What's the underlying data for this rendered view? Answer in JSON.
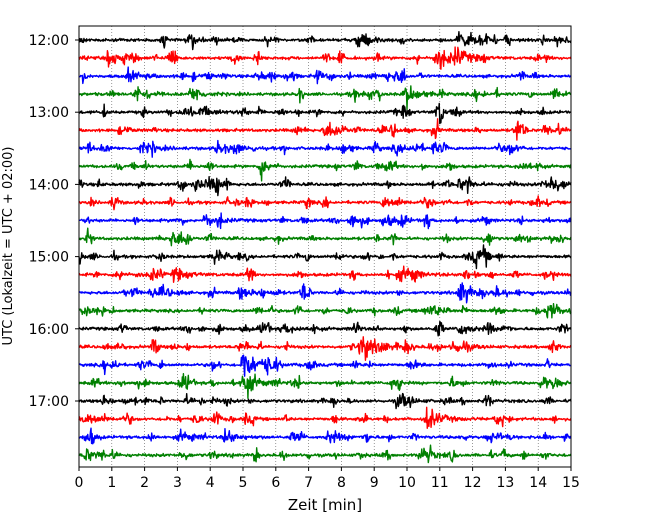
{
  "chart_data": {
    "type": "line",
    "xlabel": "Zeit  [min]",
    "ylabel": "UTC (Lokalzeit = UTC + 02:00)",
    "xlim": [
      0,
      15
    ],
    "x_ticks": [
      "0",
      "1",
      "2",
      "3",
      "4",
      "5",
      "6",
      "7",
      "8",
      "9",
      "10",
      "11",
      "12",
      "13",
      "14",
      "15"
    ],
    "y_ticks": [
      "12:00",
      "13:00",
      "14:00",
      "15:00",
      "16:00",
      "17:00"
    ],
    "grid": "vertical dotted lines at each minute",
    "trace_colors": [
      "#000000",
      "#ff0000",
      "#0000ff",
      "#008000"
    ],
    "trace_interval_min": 15,
    "first_trace": "12:00",
    "trace_count": 24,
    "events": [
      {
        "trace": 0,
        "x": 11.6,
        "amp": 1.0
      },
      {
        "trace": 0,
        "x": 8.5,
        "amp": 0.6
      },
      {
        "trace": 1,
        "x": 10.9,
        "amp": 1.3
      },
      {
        "trace": 1,
        "x": 11.5,
        "amp": 0.7
      },
      {
        "trace": 2,
        "x": 1.5,
        "amp": 0.5
      },
      {
        "trace": 3,
        "x": 10.0,
        "amp": 0.8
      },
      {
        "trace": 3,
        "x": 3.4,
        "amp": 0.5
      },
      {
        "trace": 4,
        "x": 3.7,
        "amp": 0.5
      },
      {
        "trace": 5,
        "x": 7.5,
        "amp": 0.6
      },
      {
        "trace": 5,
        "x": 14.2,
        "amp": 0.5
      },
      {
        "trace": 6,
        "x": 4.2,
        "amp": 0.6
      },
      {
        "trace": 6,
        "x": 1.9,
        "amp": 0.5
      },
      {
        "trace": 8,
        "x": 14.4,
        "amp": 0.9
      },
      {
        "trace": 8,
        "x": 11.6,
        "amp": 0.5
      },
      {
        "trace": 9,
        "x": 9.3,
        "amp": 0.5
      },
      {
        "trace": 10,
        "x": 9.3,
        "amp": 0.6
      },
      {
        "trace": 10,
        "x": 3.9,
        "amp": 0.5
      },
      {
        "trace": 13,
        "x": 2.9,
        "amp": 0.6
      },
      {
        "trace": 13,
        "x": 10.0,
        "amp": 0.5
      },
      {
        "trace": 14,
        "x": 11.6,
        "amp": 1.1
      },
      {
        "trace": 14,
        "x": 4.9,
        "amp": 0.5
      },
      {
        "trace": 15,
        "x": 14.3,
        "amp": 0.8
      },
      {
        "trace": 16,
        "x": 6.2,
        "amp": 0.5
      },
      {
        "trace": 16,
        "x": 11.6,
        "amp": 0.5
      },
      {
        "trace": 17,
        "x": 8.6,
        "amp": 1.3
      },
      {
        "trace": 17,
        "x": 11.4,
        "amp": 0.7
      },
      {
        "trace": 18,
        "x": 5.0,
        "amp": 1.6
      },
      {
        "trace": 19,
        "x": 5.0,
        "amp": 1.3
      },
      {
        "trace": 19,
        "x": 14.2,
        "amp": 0.5
      },
      {
        "trace": 20,
        "x": 9.7,
        "amp": 0.5
      },
      {
        "trace": 21,
        "x": 10.6,
        "amp": 1.0
      },
      {
        "trace": 21,
        "x": 0.3,
        "amp": 0.5
      },
      {
        "trace": 22,
        "x": 7.6,
        "amp": 0.6
      },
      {
        "trace": 22,
        "x": 4.5,
        "amp": 0.5
      },
      {
        "trace": 23,
        "x": 10.4,
        "amp": 0.6
      },
      {
        "trace": 23,
        "x": 0.2,
        "amp": 0.6
      }
    ]
  }
}
